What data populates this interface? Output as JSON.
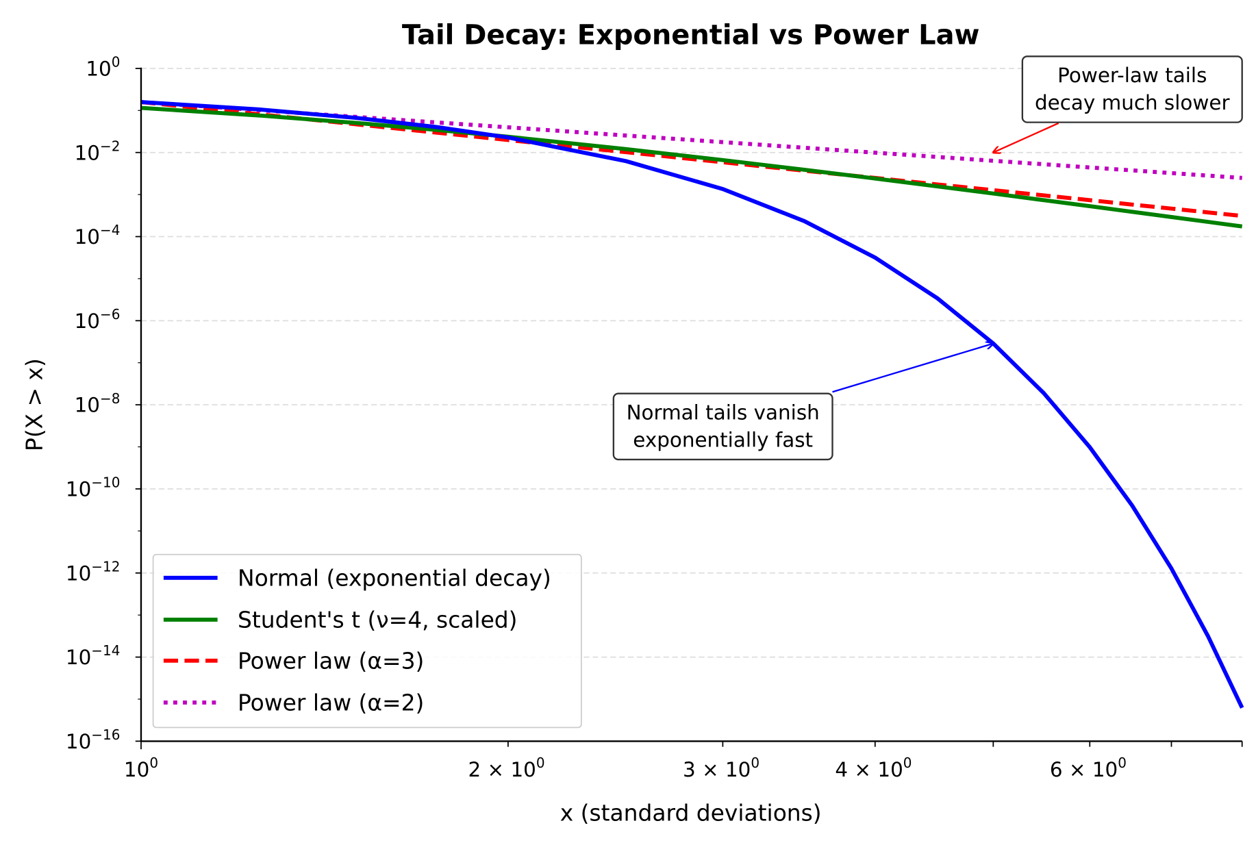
{
  "chart_data": {
    "type": "line",
    "title": "Tail Decay: Exponential vs Power Law",
    "xlabel": "x (standard deviations)",
    "ylabel": "P(X > x)",
    "xscale": "log",
    "yscale": "log",
    "xlim": [
      1,
      8
    ],
    "ylim": [
      1e-16,
      1
    ],
    "grid": "y-dashed",
    "legend_position": "lower-left",
    "x_tick_labels": [
      {
        "value": 1,
        "base": "10",
        "exp": "0",
        "prefix": ""
      },
      {
        "value": 2,
        "base": "10",
        "exp": "0",
        "prefix": "2 × "
      },
      {
        "value": 3,
        "base": "10",
        "exp": "0",
        "prefix": "3 × "
      },
      {
        "value": 4,
        "base": "10",
        "exp": "0",
        "prefix": "4 × "
      },
      {
        "value": 6,
        "base": "10",
        "exp": "0",
        "prefix": "6 × "
      }
    ],
    "x_minor_ticks": [
      5,
      7,
      8
    ],
    "y_tick_labels": [
      {
        "value": 1,
        "base": "10",
        "exp": "0"
      },
      {
        "value": 0.01,
        "base": "10",
        "exp": "−2"
      },
      {
        "value": 0.0001,
        "base": "10",
        "exp": "−4"
      },
      {
        "value": 1e-06,
        "base": "10",
        "exp": "−6"
      },
      {
        "value": 1e-08,
        "base": "10",
        "exp": "−8"
      },
      {
        "value": 1e-10,
        "base": "10",
        "exp": "−10"
      },
      {
        "value": 1e-12,
        "base": "10",
        "exp": "−12"
      },
      {
        "value": 1e-14,
        "base": "10",
        "exp": "−14"
      },
      {
        "value": 1e-16,
        "base": "10",
        "exp": "−16"
      }
    ],
    "x": [
      1,
      1.25,
      1.5,
      1.75,
      2,
      2.5,
      3,
      3.5,
      4,
      4.5,
      5,
      5.5,
      6,
      6.5,
      7,
      7.5,
      8
    ],
    "series": [
      {
        "name": "Normal (exponential decay)",
        "color": "#0000ff",
        "style": "solid",
        "values": [
          0.1587,
          0.1056,
          0.06681,
          0.04006,
          0.02275,
          0.00621,
          0.00135,
          0.0002326,
          3.167e-05,
          3.398e-06,
          2.867e-07,
          1.899e-08,
          9.866e-10,
          4.016e-11,
          1.28e-12,
          3.191e-14,
          6.221e-16
        ]
      },
      {
        "name": "Student's t (ν=4, scaled)",
        "color": "#008000",
        "style": "solid",
        "values": [
          0.1151,
          0.0759,
          0.0506,
          0.03429,
          0.02371,
          0.012055,
          0.006618,
          0.003881,
          0.002406,
          0.001563,
          0.001055,
          0.0007366,
          0.0005288,
          0.000389,
          0.0002922,
          0.0002236,
          0.0001739
        ]
      },
      {
        "name": "Power law (α=3)",
        "color": "#ff0000",
        "style": "dashed",
        "values": [
          0.1587,
          0.08125,
          0.04702,
          0.02961,
          0.01984,
          0.01016,
          0.005878,
          0.003701,
          0.00248,
          0.001742,
          0.00127,
          0.000954,
          0.000735,
          0.000578,
          0.000463,
          0.000376,
          0.00031
        ]
      },
      {
        "name": "Power law (α=2)",
        "color": "#bf00bf",
        "style": "dotted",
        "values": [
          0.1587,
          0.1016,
          0.07053,
          0.05182,
          0.03968,
          0.02539,
          0.01763,
          0.01296,
          0.00992,
          0.00784,
          0.00635,
          0.00525,
          0.00441,
          0.003757,
          0.003239,
          0.002821,
          0.00248
        ]
      }
    ],
    "annotations": [
      {
        "lines": [
          "Power-law tails",
          "decay much slower"
        ],
        "target": [
          5,
          0.01
        ],
        "arrow_color": "#ff0000"
      },
      {
        "lines": [
          "Normal tails vanish",
          "exponentially fast"
        ],
        "target": [
          5,
          2.867e-07
        ],
        "arrow_color": "#0000ff"
      }
    ]
  }
}
